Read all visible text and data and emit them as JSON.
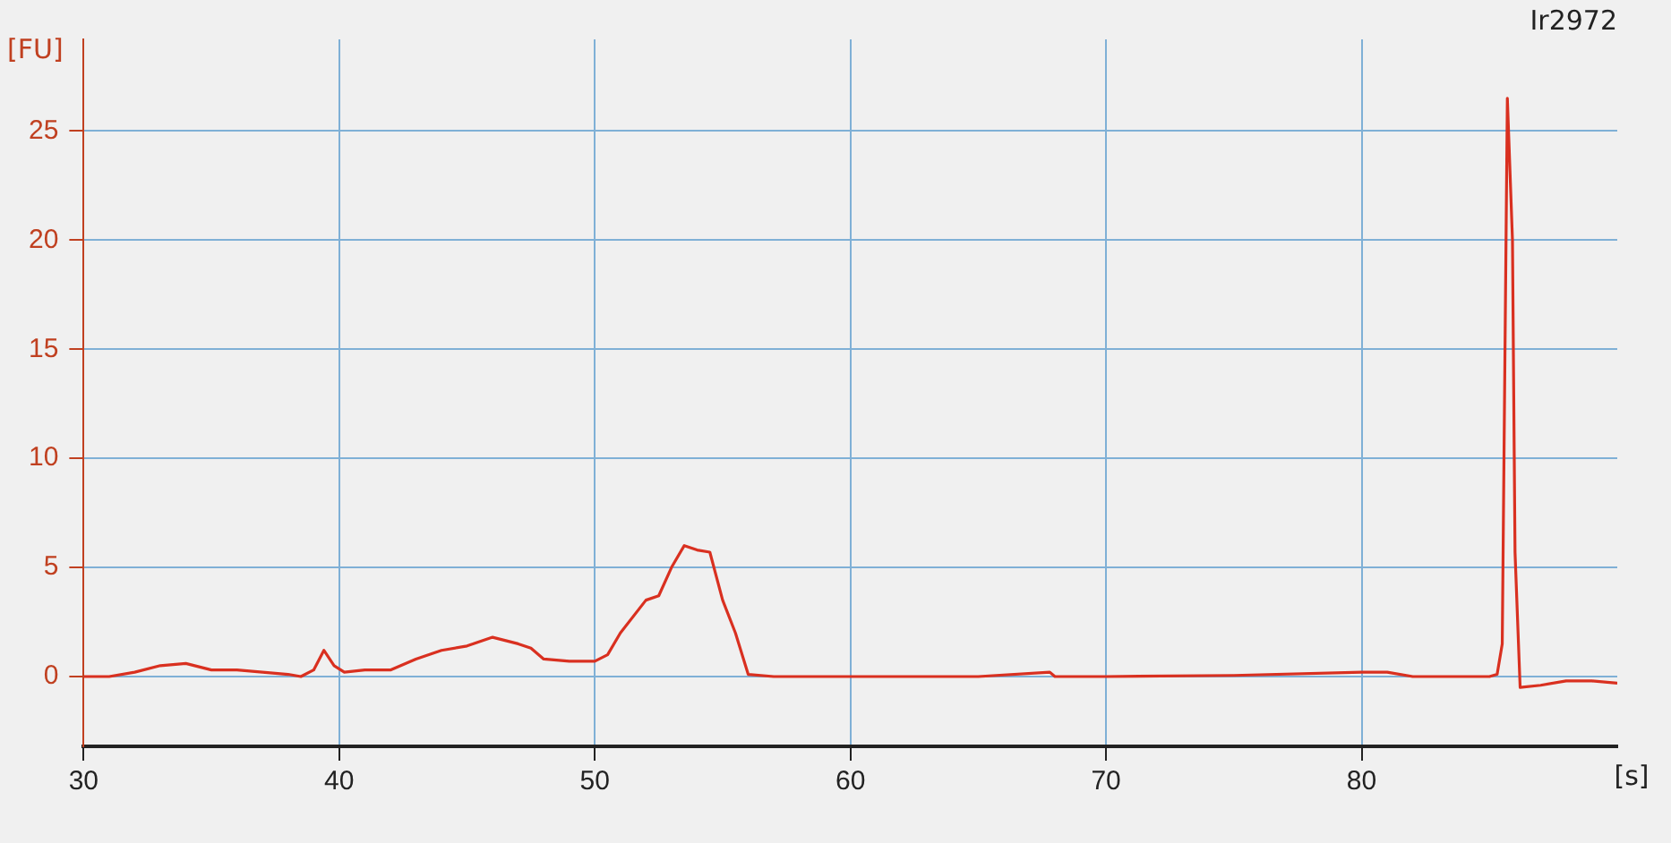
{
  "chart_data": {
    "type": "line",
    "title": "Ir2972",
    "xlabel": "[s]",
    "ylabel": "[FU]",
    "xlim": [
      30,
      90
    ],
    "xticks": [
      30,
      40,
      50,
      60,
      70,
      80
    ],
    "ylim": [
      -3.2,
      29.2
    ],
    "yticks": [
      0,
      5,
      10,
      15,
      20,
      25
    ],
    "grid": true,
    "legend": false,
    "marker": "none",
    "line_style": "solid",
    "series": [
      {
        "color": "#d93020",
        "x": [
          30,
          31,
          32,
          33,
          34,
          35,
          36,
          37,
          38,
          38.5,
          39,
          39.4,
          39.8,
          40.2,
          41,
          42,
          43,
          44,
          45,
          46,
          47,
          47.5,
          48,
          49,
          50,
          50.5,
          51,
          52,
          52.5,
          53,
          53.5,
          54,
          54.5,
          55,
          55.5,
          56,
          57,
          60,
          65,
          67.8,
          68,
          70,
          75,
          80,
          81,
          82,
          85,
          85.3,
          85.5,
          85.7,
          85.9,
          86,
          86.2,
          87,
          88,
          89,
          90
        ],
        "values": [
          0,
          0,
          0.2,
          0.5,
          0.6,
          0.3,
          0.3,
          0.2,
          0.1,
          0,
          0.3,
          1.2,
          0.5,
          0.2,
          0.3,
          0.3,
          0.8,
          1.2,
          1.4,
          1.8,
          1.5,
          1.3,
          0.8,
          0.7,
          0.7,
          1,
          2,
          3.5,
          3.7,
          5,
          6,
          5.8,
          5.7,
          3.5,
          2,
          0.1,
          0,
          0,
          0,
          0.2,
          0,
          0,
          0.05,
          0.2,
          0.2,
          0,
          0,
          0.1,
          1.5,
          26.5,
          20,
          5.7,
          -0.5,
          -0.4,
          -0.2,
          -0.2,
          -0.3
        ]
      }
    ]
  }
}
